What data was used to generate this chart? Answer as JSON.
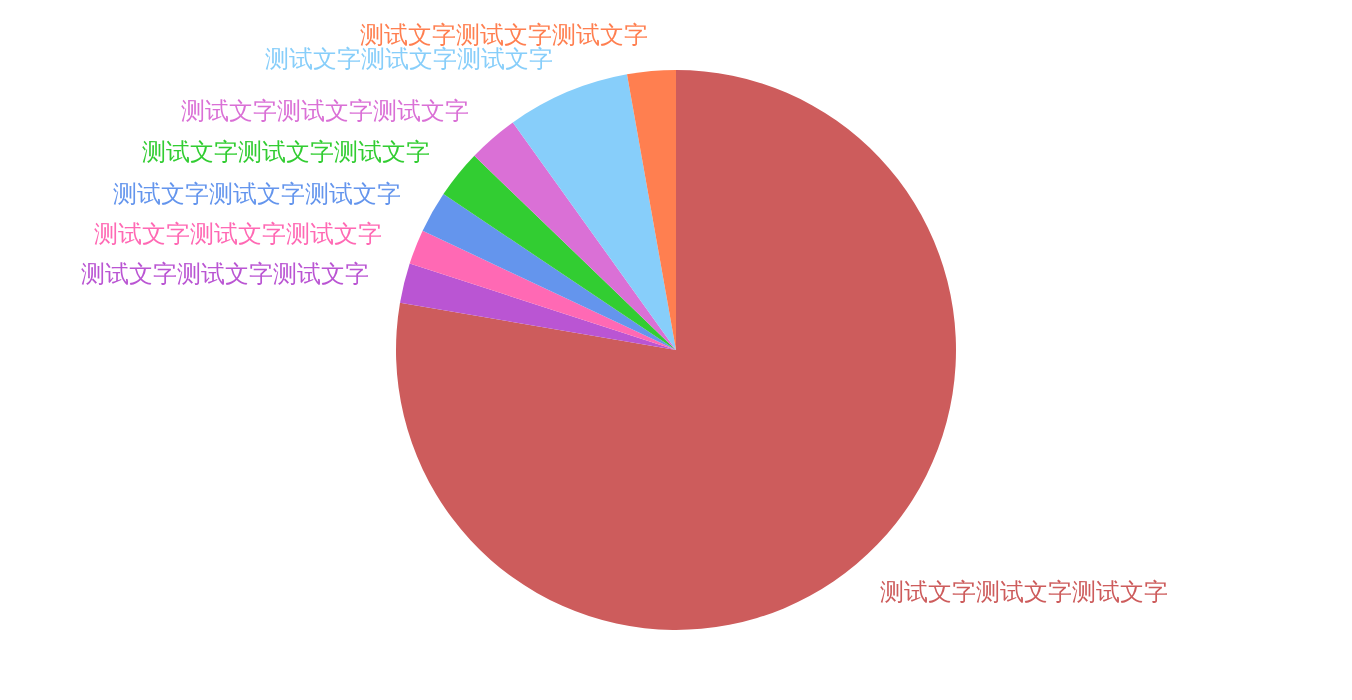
{
  "chart_data": {
    "type": "pie",
    "categories": [
      "测试文字测试文字测试文字",
      "测试文字测试文字测试文字",
      "测试文字测试文字测试文字",
      "测试文字测试文字测试文字",
      "测试文字测试文字测试文字",
      "测试文字测试文字测试文字",
      "测试文字测试文字测试文字",
      "测试文字测试文字测试文字"
    ],
    "values": [
      77.7,
      2.3,
      2.0,
      2.4,
      2.8,
      2.9,
      7.1,
      2.8
    ],
    "colors": [
      "#cd5c5c",
      "#ba55d3",
      "#ff69b4",
      "#6495ed",
      "#32cd32",
      "#da70d6",
      "#87cefa",
      "#ff7f50"
    ]
  }
}
